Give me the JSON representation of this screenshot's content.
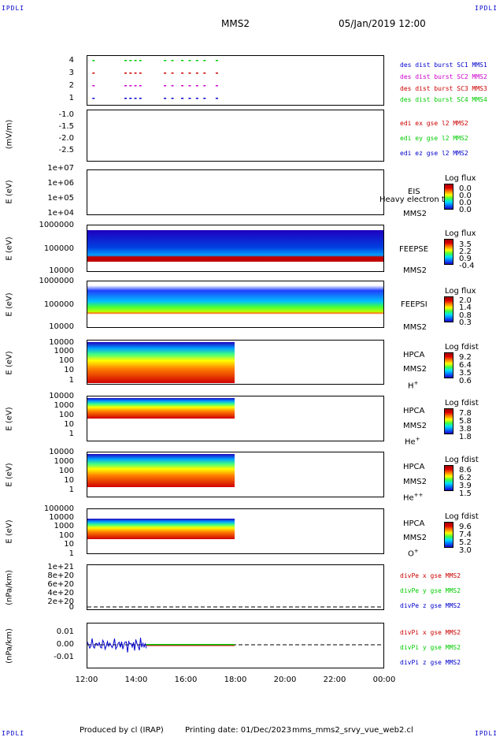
{
  "corner_label": "IPDLI",
  "header": {
    "title": "MMS2",
    "date": "05/Jan/2019 12:00"
  },
  "footer": {
    "produced": "Produced by cl (IRAP)",
    "printing": "Printing date: 01/Dec/2023",
    "file": "mms_mms2_srvy_vue_web2.cl"
  },
  "colors": {
    "mms1": "#0000cc",
    "mms2": "#cc00cc",
    "mms3": "#cc0000",
    "mms4": "#00cc00",
    "x": "#cc0000",
    "y": "#00cc00",
    "z": "#0000cc"
  },
  "chart_data": [
    {
      "type": "scatter",
      "ticks": [
        "4",
        "3",
        "2",
        "1"
      ],
      "legend": [
        "des dist burst SC1 MMS1",
        "des dist burst SC2 MMS2",
        "des dist burst SC3 MMS3",
        "des dist burst SC4 MMS4"
      ],
      "series": [
        {
          "name": "des dist burst SC1 MMS1",
          "y": 1,
          "x_hours": [
            12.2,
            13.5,
            13.7,
            13.9,
            14.1,
            15.1,
            15.4,
            15.8,
            16.1,
            16.4,
            16.7,
            17.2
          ]
        },
        {
          "name": "des dist burst SC2 MMS2",
          "y": 2,
          "x_hours": [
            12.2,
            13.5,
            13.7,
            13.9,
            14.1,
            15.1,
            15.4,
            15.8,
            16.1,
            16.4,
            16.7,
            17.2
          ]
        },
        {
          "name": "des dist burst SC3 MMS3",
          "y": 3,
          "x_hours": [
            12.2,
            13.5,
            13.7,
            13.9,
            14.1,
            15.1,
            15.4,
            15.8,
            16.1,
            16.4,
            16.7,
            17.2
          ]
        },
        {
          "name": "des dist burst SC4 MMS4",
          "y": 4,
          "x_hours": [
            12.2,
            13.5,
            13.7,
            13.9,
            14.1,
            15.1,
            15.4,
            15.8,
            16.1,
            16.4,
            16.7,
            17.2
          ]
        }
      ]
    },
    {
      "type": "line",
      "ylabel": "(mV/m)",
      "ticks": [
        "-1.0",
        "-1.5",
        "-2.0",
        "-2.5"
      ],
      "ylim": [
        -2.8,
        -0.9
      ],
      "legend": [
        "edi ex gse l2 MMS2",
        "edi ey gse l2 MMS2",
        "edi ez gse l2 MMS2"
      ],
      "series": []
    },
    {
      "type": "heatmap",
      "ylabel": "E (eV)",
      "ticks": [
        "1e+07",
        "1e+06",
        "1e+05",
        "1e+04"
      ],
      "instrument": "EIS",
      "overlay": "Heavy electron to",
      "probe": "MMS2",
      "cbar_title": "Log flux",
      "cbar_ticks": [
        "0.0",
        "0.0",
        "0.0",
        "0.0"
      ]
    },
    {
      "type": "heatmap",
      "ylabel": "E (eV)",
      "ticks": [
        "1000000",
        "100000",
        "10000"
      ],
      "instrument": "FEEPSE",
      "probe": "MMS2",
      "cbar_title": "Log flux",
      "cbar_ticks": [
        "3.5",
        "2.2",
        "0.9",
        "-0.4"
      ]
    },
    {
      "type": "heatmap",
      "ylabel": "E (eV)",
      "ticks": [
        "1000000",
        "100000",
        "10000"
      ],
      "instrument": "FEEPSI",
      "probe": "MMS2",
      "cbar_title": "Log flux",
      "cbar_ticks": [
        "2.0",
        "1.4",
        "0.8",
        "0.3"
      ]
    },
    {
      "type": "heatmap",
      "ylabel": "E (eV)",
      "ticks": [
        "10000",
        "1000",
        "100",
        "10",
        "1"
      ],
      "instrument": "HPCA",
      "probe": "MMS2",
      "species": "H",
      "species_sup": "+",
      "cbar_title": "Log fdist",
      "cbar_ticks": [
        "9.2",
        "6.4",
        "3.5",
        "0.6"
      ]
    },
    {
      "type": "heatmap",
      "ylabel": "E (eV)",
      "ticks": [
        "10000",
        "1000",
        "100",
        "10",
        "1"
      ],
      "instrument": "HPCA",
      "probe": "MMS2",
      "species": "He",
      "species_sup": "+",
      "cbar_title": "Log fdist",
      "cbar_ticks": [
        "7.8",
        "5.8",
        "3.8",
        "1.8"
      ]
    },
    {
      "type": "heatmap",
      "ylabel": "E (eV)",
      "ticks": [
        "10000",
        "1000",
        "100",
        "10",
        "1"
      ],
      "instrument": "HPCA",
      "probe": "MMS2",
      "species": "He",
      "species_sup": "++",
      "cbar_title": "Log fdist",
      "cbar_ticks": [
        "8.6",
        "6.2",
        "3.9",
        "1.5"
      ]
    },
    {
      "type": "heatmap",
      "ylabel": "E (eV)",
      "ticks": [
        "100000",
        "10000",
        "1000",
        "100",
        "10",
        "1"
      ],
      "instrument": "HPCA",
      "probe": "MMS2",
      "species": "O",
      "species_sup": "+",
      "cbar_title": "Log fdist",
      "cbar_ticks": [
        "9.6",
        "7.4",
        "5.2",
        "3.0"
      ]
    },
    {
      "type": "line",
      "ylabel": "(nPa/km)",
      "ticks": [
        "1e+21",
        "8e+20",
        "6e+20",
        "4e+20",
        "2e+20",
        "0"
      ],
      "ylim": [
        0,
        1e+21
      ],
      "legend": [
        "divPe x gse MMS2",
        "divPe y gse MMS2",
        "divPe z gse MMS2"
      ]
    },
    {
      "type": "line",
      "ylabel": "(nPa/km)",
      "ticks": [
        "0.01",
        "0.00",
        "-0.01"
      ],
      "ylim": [
        -0.015,
        0.015
      ],
      "legend": [
        "divPi x gse MMS2",
        "divPi y gse MMS2",
        "divPi z gse MMS2"
      ]
    }
  ],
  "x_axis": {
    "ticks": [
      "12:00",
      "14:00",
      "16:00",
      "18:00",
      "20:00",
      "22:00",
      "00:00"
    ],
    "range_hours": [
      12,
      24
    ]
  }
}
